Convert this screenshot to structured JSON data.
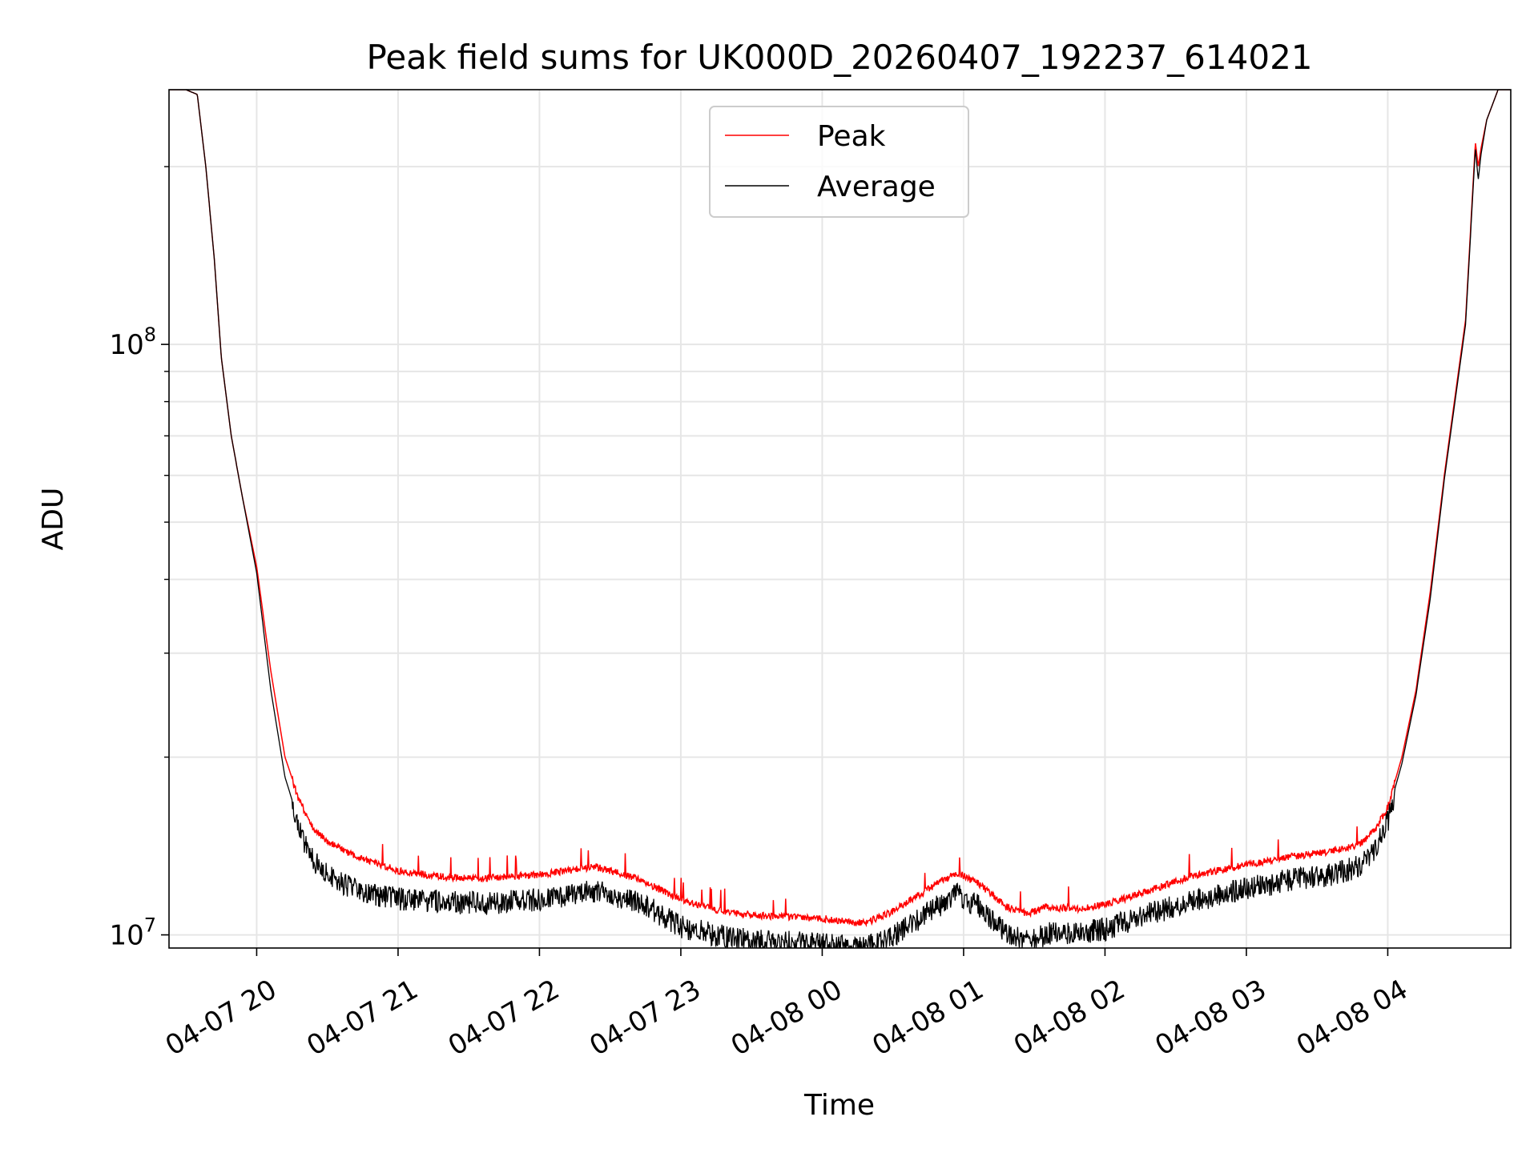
{
  "chart_data": {
    "type": "line",
    "title": "Peak field sums for UK000D_20260407_192237_614021",
    "xlabel": "Time",
    "ylabel": "ADU",
    "yscale": "log",
    "ylim": [
      9500000,
      270000000
    ],
    "xlim_hours": [
      -0.62,
      8.87
    ],
    "grid": true,
    "legend": {
      "position": "top-center",
      "entries": [
        "Peak",
        "Average"
      ]
    },
    "x_ticks": [
      {
        "hours": 0,
        "label": "04-07 20"
      },
      {
        "hours": 1,
        "label": "04-07 21"
      },
      {
        "hours": 2,
        "label": "04-07 22"
      },
      {
        "hours": 3,
        "label": "04-07 23"
      },
      {
        "hours": 4,
        "label": "04-08 00"
      },
      {
        "hours": 5,
        "label": "04-08 01"
      },
      {
        "hours": 6,
        "label": "04-08 02"
      },
      {
        "hours": 7,
        "label": "04-08 03"
      },
      {
        "hours": 8,
        "label": "04-08 04"
      }
    ],
    "y_major_ticks": [
      {
        "value": 10000000,
        "base": "10",
        "exp": "7"
      },
      {
        "value": 100000000,
        "base": "10",
        "exp": "8"
      }
    ],
    "y_minor_ticks": [
      20000000,
      30000000,
      40000000,
      50000000,
      60000000,
      70000000,
      80000000,
      90000000,
      200000000
    ],
    "series": [
      {
        "name": "Peak",
        "color": "#ff0000",
        "x_hours": [
          -0.62,
          -0.5,
          -0.42,
          -0.36,
          -0.3,
          -0.25,
          -0.18,
          -0.1,
          0,
          0.1,
          0.2,
          0.3,
          0.4,
          0.5,
          0.6,
          0.8,
          1.0,
          1.3,
          1.6,
          2.0,
          2.4,
          2.7,
          3.0,
          3.3,
          3.6,
          4.0,
          4.3,
          4.5,
          4.75,
          4.95,
          5.1,
          5.3,
          5.45,
          5.6,
          5.8,
          6.0,
          6.3,
          6.6,
          7.0,
          7.3,
          7.6,
          7.8,
          7.9,
          8.0,
          8.1,
          8.2,
          8.3,
          8.4,
          8.55,
          8.62,
          8.64,
          8.66,
          8.7,
          8.78,
          8.87
        ],
        "values": [
          270000000,
          270000000,
          265000000,
          200000000,
          140000000,
          95000000,
          70000000,
          55000000,
          42000000,
          28000000,
          20000000,
          17000000,
          15200000,
          14500000,
          14000000,
          13400000,
          12900000,
          12600000,
          12500000,
          12700000,
          13100000,
          12500000,
          11500000,
          11000000,
          10800000,
          10700000,
          10500000,
          11000000,
          12000000,
          12800000,
          12300000,
          11200000,
          10900000,
          11200000,
          11100000,
          11300000,
          11900000,
          12600000,
          13200000,
          13600000,
          13900000,
          14300000,
          15000000,
          16500000,
          20000000,
          26000000,
          38000000,
          60000000,
          110000000,
          220000000,
          200000000,
          215000000,
          240000000,
          270000000,
          270000000
        ]
      },
      {
        "name": "Average",
        "color": "#000000",
        "x_hours": [
          -0.62,
          -0.5,
          -0.42,
          -0.36,
          -0.3,
          -0.25,
          -0.18,
          -0.1,
          0,
          0.1,
          0.2,
          0.3,
          0.4,
          0.5,
          0.6,
          0.8,
          1.0,
          1.3,
          1.6,
          2.0,
          2.4,
          2.7,
          3.0,
          3.3,
          3.6,
          4.0,
          4.3,
          4.5,
          4.75,
          4.95,
          5.1,
          5.3,
          5.45,
          5.6,
          5.8,
          6.0,
          6.3,
          6.6,
          7.0,
          7.3,
          7.6,
          7.8,
          7.9,
          8.0,
          8.1,
          8.2,
          8.3,
          8.4,
          8.55,
          8.62,
          8.64,
          8.66,
          8.7,
          8.78,
          8.87
        ],
        "values": [
          270000000,
          270000000,
          265000000,
          200000000,
          140000000,
          95000000,
          70000000,
          55000000,
          41000000,
          26000000,
          18500000,
          15500000,
          13700000,
          13000000,
          12600000,
          12000000,
          11800000,
          11700000,
          11600000,
          11800000,
          12200000,
          11700000,
          10600000,
          10200000,
          10000000,
          9900000,
          9800000,
          10200000,
          11200000,
          12000000,
          11500000,
          10400000,
          10000000,
          10300000,
          10300000,
          10500000,
          11100000,
          11700000,
          12300000,
          12700000,
          13000000,
          13400000,
          14200000,
          16000000,
          19500000,
          25500000,
          37000000,
          59000000,
          108000000,
          215000000,
          190000000,
          210000000,
          240000000,
          270000000,
          270000000
        ]
      }
    ]
  }
}
